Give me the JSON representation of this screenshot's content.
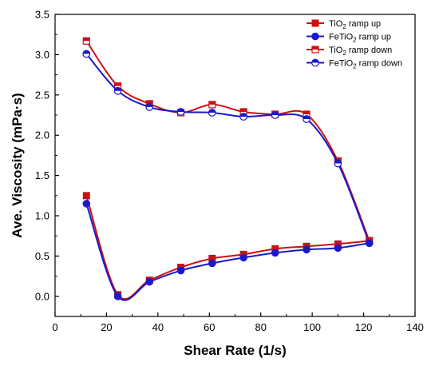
{
  "chart_data": {
    "type": "line",
    "xlabel": "Shear Rate (1/s)",
    "ylabel": "Ave. Viscosity (mPa·s)",
    "xlim": [
      0,
      140
    ],
    "ylim": [
      -0.25,
      3.5
    ],
    "x_ticks": [
      "0",
      "20",
      "40",
      "60",
      "80",
      "100",
      "120",
      "140"
    ],
    "y_ticks": [
      "0.0",
      "0.5",
      "1.0",
      "1.5",
      "2.0",
      "2.5",
      "3.0",
      "3.5"
    ],
    "grid": false,
    "legend_position": "top-right",
    "series": [
      {
        "name": "TiO2 ramp up",
        "legend": {
          "base": "TiO",
          "sub": "2",
          "rest": " ramp up"
        },
        "color": "#cc1111",
        "marker": "square-filled",
        "x": [
          12.2,
          24.4,
          36.7,
          48.9,
          61.1,
          73.3,
          85.6,
          97.8,
          110.0,
          122.2
        ],
        "y": [
          1.25,
          0.02,
          0.2,
          0.36,
          0.47,
          0.52,
          0.59,
          0.62,
          0.65,
          0.69
        ]
      },
      {
        "name": "FeTiO2 ramp up",
        "legend": {
          "base": "FeTiO",
          "sub": "2",
          "rest": " ramp up"
        },
        "color": "#1a1acc",
        "marker": "circle-filled",
        "x": [
          12.2,
          24.4,
          36.7,
          48.9,
          61.1,
          73.3,
          85.6,
          97.8,
          110.0,
          122.2
        ],
        "y": [
          1.15,
          0.0,
          0.18,
          0.32,
          0.41,
          0.48,
          0.54,
          0.58,
          0.6,
          0.66
        ]
      },
      {
        "name": "TiO2 ramp down",
        "legend": {
          "base": "TiO",
          "sub": "2",
          "rest": " ramp down"
        },
        "color": "#cc1111",
        "marker": "square-half",
        "x": [
          12.2,
          24.4,
          36.7,
          48.9,
          61.1,
          73.3,
          85.6,
          97.8,
          110.0,
          122.2
        ],
        "y": [
          3.17,
          2.61,
          2.39,
          2.28,
          2.38,
          2.29,
          2.26,
          2.26,
          1.68,
          0.69
        ]
      },
      {
        "name": "FeTiO2 ramp down",
        "legend": {
          "base": "FeTiO",
          "sub": "2",
          "rest": " ramp down"
        },
        "color": "#1a1acc",
        "marker": "circle-half",
        "x": [
          12.2,
          24.4,
          36.7,
          48.9,
          61.1,
          73.3,
          85.6,
          97.8,
          110.0,
          122.2
        ],
        "y": [
          3.01,
          2.55,
          2.35,
          2.29,
          2.28,
          2.23,
          2.25,
          2.2,
          1.65,
          0.66
        ]
      }
    ]
  }
}
